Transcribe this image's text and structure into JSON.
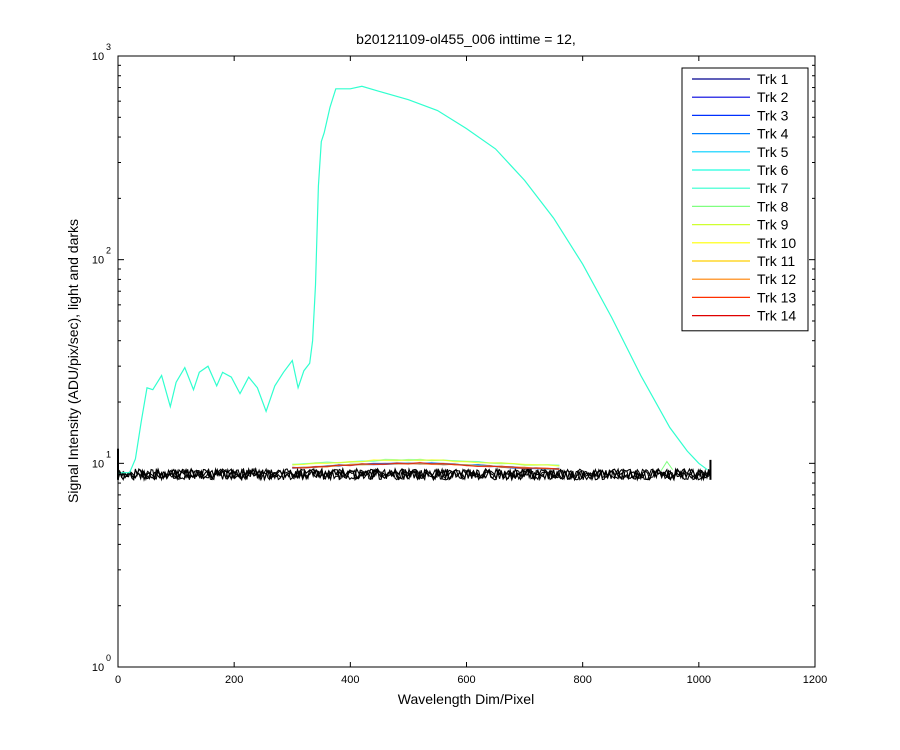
{
  "chart_data": {
    "type": "line",
    "title": "b20121109-ol455_006 inttime = 12,",
    "xlabel": "Wavelength Dim/Pixel",
    "ylabel": "Signal Intensity (ADU/pix/sec), light and darks",
    "xlim": [
      0,
      1200
    ],
    "ylim": [
      1,
      1000
    ],
    "yscale": "log",
    "x_ticks": [
      "0",
      "200",
      "400",
      "600",
      "800",
      "1000",
      "1200"
    ],
    "y_ticks": [
      {
        "base": "10",
        "exp": "0"
      },
      {
        "base": "10",
        "exp": "1"
      },
      {
        "base": "10",
        "exp": "2"
      },
      {
        "base": "10",
        "exp": "3"
      }
    ],
    "legend_position": "top-right",
    "series": [
      {
        "name": "Trk 1",
        "color": "#00008f"
      },
      {
        "name": "Trk 2",
        "color": "#0000df"
      },
      {
        "name": "Trk 3",
        "color": "#0030ff"
      },
      {
        "name": "Trk 4",
        "color": "#0080ff"
      },
      {
        "name": "Trk 5",
        "color": "#00cfff"
      },
      {
        "name": "Trk 6",
        "color": "#20ffdf"
      },
      {
        "name": "Trk 7",
        "color": "#30ffcf",
        "x": [
          0,
          20,
          30,
          40,
          50,
          60,
          75,
          90,
          100,
          115,
          130,
          140,
          155,
          170,
          180,
          195,
          210,
          225,
          240,
          255,
          270,
          285,
          300,
          310,
          320,
          330,
          335,
          340,
          345,
          350,
          355,
          365,
          375,
          400,
          420,
          450,
          500,
          550,
          600,
          650,
          700,
          750,
          800,
          850,
          900,
          950,
          980,
          1000,
          1015
        ],
        "y": [
          9.0,
          9.0,
          10.5,
          16.0,
          23.5,
          23.0,
          27.0,
          19.0,
          25.0,
          29.5,
          23.0,
          28.0,
          30.0,
          24.0,
          28.0,
          26.5,
          22.0,
          26.5,
          23.5,
          18.0,
          24.0,
          28.0,
          32.0,
          23.5,
          28.5,
          31.0,
          40.0,
          75.0,
          230.0,
          380.0,
          420.0,
          560.0,
          690.0,
          690.0,
          710.0,
          670.0,
          610.0,
          540.0,
          440.0,
          350.0,
          245.0,
          160.0,
          95.0,
          52.0,
          27.0,
          15.0,
          11.5,
          10.0,
          9.3
        ]
      },
      {
        "name": "Trk 8",
        "color": "#80ff80"
      },
      {
        "name": "Trk 9",
        "color": "#cfff30"
      },
      {
        "name": "Trk 10",
        "color": "#ffff00"
      },
      {
        "name": "Trk 11",
        "color": "#ffcf00"
      },
      {
        "name": "Trk 12",
        "color": "#ff8000"
      },
      {
        "name": "Trk 13",
        "color": "#ff3000"
      },
      {
        "name": "Trk 14",
        "color": "#df0000"
      }
    ],
    "dark_band": {
      "x": [
        0,
        1020
      ],
      "y_range": [
        8.3,
        9.4
      ],
      "color": "#000000"
    }
  }
}
